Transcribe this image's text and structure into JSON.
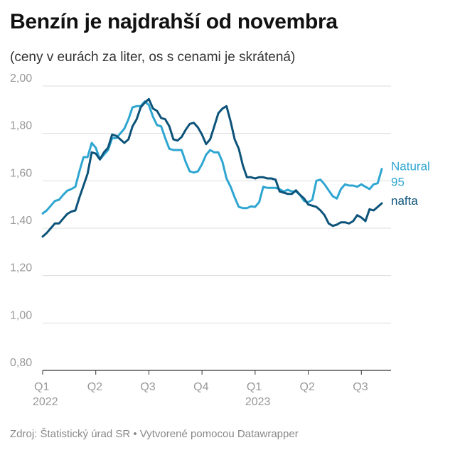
{
  "header": {
    "title": "Benzín je najdrahší od novembra",
    "subtitle": "(ceny v eurách za liter, os s cenami je skrátená)"
  },
  "footer": {
    "source": "Zdroj: Štatistický úrad SR • Vytvorené pomocou Datawrapper"
  },
  "colors": {
    "natural95": "#2ea6d1",
    "nafta": "#0d5379",
    "grid": "#dddddd",
    "tick": "#999999",
    "axis": "#333333"
  },
  "chart_data": {
    "type": "line",
    "title": "Benzín je najdrahší od novembra",
    "subtitle": "(ceny v eurách za liter, os s cenami je skrátená)",
    "xlabel": "",
    "ylabel": "",
    "ylim": [
      0.8,
      2.0
    ],
    "yticks": [
      "2,00",
      "1,80",
      "1,60",
      "1,40",
      "1,20",
      "1,00",
      "0,80"
    ],
    "ytick_values": [
      2.0,
      1.8,
      1.6,
      1.4,
      1.2,
      1.0,
      0.8
    ],
    "xlim": [
      0,
      85
    ],
    "xticks": [
      {
        "x": 0,
        "label": "Q1",
        "year": "2022"
      },
      {
        "x": 13,
        "label": "Q2",
        "year": ""
      },
      {
        "x": 26,
        "label": "Q3",
        "year": ""
      },
      {
        "x": 39,
        "label": "Q4",
        "year": ""
      },
      {
        "x": 52,
        "label": "Q1",
        "year": "2023"
      },
      {
        "x": 65,
        "label": "Q2",
        "year": ""
      },
      {
        "x": 78,
        "label": "Q3",
        "year": ""
      }
    ],
    "x_unit": "weeks since start of 2022",
    "series": [
      {
        "name": "Natural 95",
        "label_lines": [
          "Natural",
          "95"
        ],
        "x": [
          0,
          1,
          2,
          3,
          4,
          5,
          6,
          7,
          8,
          9,
          10,
          11,
          12,
          13,
          14,
          15,
          16,
          17,
          18,
          19,
          20,
          21,
          22,
          23,
          24,
          25,
          26,
          27,
          28,
          29,
          30,
          31,
          32,
          33,
          34,
          35,
          36,
          37,
          38,
          39,
          40,
          41,
          42,
          43,
          44,
          45,
          46,
          47,
          48,
          49,
          50,
          51,
          52,
          53,
          54,
          55,
          56,
          57,
          58,
          59,
          60,
          61,
          62,
          63,
          64,
          65,
          66,
          67,
          68,
          69,
          70,
          71,
          72,
          73,
          74,
          75,
          76,
          77,
          78,
          79,
          80,
          81,
          82,
          83
        ],
        "values": [
          1.462,
          1.475,
          1.495,
          1.515,
          1.52,
          1.54,
          1.558,
          1.565,
          1.575,
          1.64,
          1.7,
          1.7,
          1.76,
          1.74,
          1.69,
          1.71,
          1.73,
          1.78,
          1.78,
          1.8,
          1.82,
          1.86,
          1.91,
          1.915,
          1.915,
          1.935,
          1.92,
          1.87,
          1.835,
          1.83,
          1.78,
          1.735,
          1.73,
          1.73,
          1.73,
          1.68,
          1.64,
          1.635,
          1.64,
          1.67,
          1.71,
          1.73,
          1.72,
          1.72,
          1.68,
          1.61,
          1.575,
          1.53,
          1.49,
          1.485,
          1.485,
          1.492,
          1.49,
          1.51,
          1.575,
          1.57,
          1.57,
          1.57,
          1.565,
          1.555,
          1.562,
          1.555,
          1.555,
          1.54,
          1.515,
          1.51,
          1.52,
          1.6,
          1.605,
          1.585,
          1.56,
          1.535,
          1.525,
          1.565,
          1.585,
          1.58,
          1.58,
          1.575,
          1.585,
          1.575,
          1.565,
          1.585,
          1.59,
          1.65
        ]
      },
      {
        "name": "nafta",
        "label_lines": [
          "nafta"
        ],
        "x": [
          0,
          1,
          2,
          3,
          4,
          5,
          6,
          7,
          8,
          9,
          10,
          11,
          12,
          13,
          14,
          15,
          16,
          17,
          18,
          19,
          20,
          21,
          22,
          23,
          24,
          25,
          26,
          27,
          28,
          29,
          30,
          31,
          32,
          33,
          34,
          35,
          36,
          37,
          38,
          39,
          40,
          41,
          42,
          43,
          44,
          45,
          46,
          47,
          48,
          49,
          50,
          51,
          52,
          53,
          54,
          55,
          56,
          57,
          58,
          59,
          60,
          61,
          62,
          63,
          64,
          65,
          66,
          67,
          68,
          69,
          70,
          71,
          72,
          73,
          74,
          75,
          76,
          77,
          78,
          79,
          80,
          81,
          82,
          83
        ],
        "values": [
          1.365,
          1.38,
          1.4,
          1.42,
          1.42,
          1.44,
          1.46,
          1.47,
          1.475,
          1.53,
          1.58,
          1.63,
          1.72,
          1.715,
          1.69,
          1.72,
          1.74,
          1.795,
          1.79,
          1.775,
          1.76,
          1.775,
          1.83,
          1.86,
          1.91,
          1.93,
          1.945,
          1.905,
          1.895,
          1.865,
          1.86,
          1.83,
          1.775,
          1.77,
          1.785,
          1.815,
          1.84,
          1.845,
          1.825,
          1.795,
          1.755,
          1.775,
          1.83,
          1.885,
          1.905,
          1.915,
          1.85,
          1.775,
          1.735,
          1.665,
          1.615,
          1.615,
          1.61,
          1.615,
          1.615,
          1.61,
          1.61,
          1.605,
          1.555,
          1.55,
          1.545,
          1.545,
          1.56,
          1.54,
          1.525,
          1.5,
          1.495,
          1.49,
          1.475,
          1.455,
          1.42,
          1.41,
          1.415,
          1.425,
          1.425,
          1.42,
          1.43,
          1.455,
          1.445,
          1.43,
          1.48,
          1.475,
          1.49,
          1.505
        ]
      }
    ]
  }
}
